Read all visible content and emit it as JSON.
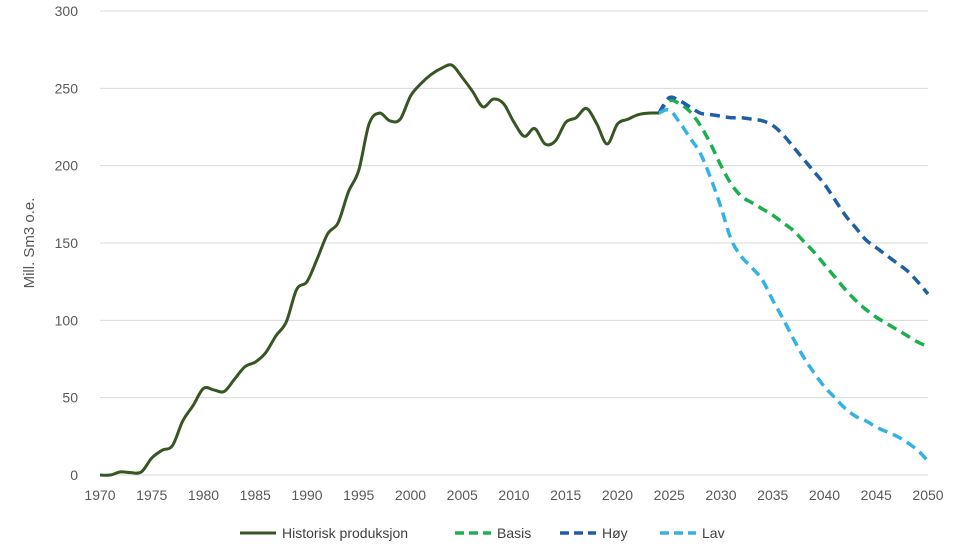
{
  "chart_data": {
    "type": "line",
    "title": "",
    "xlabel": "",
    "ylabel": "Mill. Sm3 o.e.",
    "xlim": [
      1970,
      2050
    ],
    "ylim": [
      0,
      300
    ],
    "grid": true,
    "legend_position": "bottom",
    "x_ticks": [
      "1970",
      "1975",
      "1980",
      "1985",
      "1990",
      "1995",
      "2000",
      "2005",
      "2010",
      "2015",
      "2020",
      "2025",
      "2030",
      "2035",
      "2040",
      "2045",
      "2050"
    ],
    "y_ticks": [
      "0",
      "50",
      "100",
      "150",
      "200",
      "250",
      "300"
    ],
    "series": [
      {
        "name": "Historisk produksjon",
        "color": "#375623",
        "dash": "solid",
        "x": [
          1970,
          1971,
          1972,
          1973,
          1974,
          1975,
          1976,
          1977,
          1978,
          1979,
          1980,
          1981,
          1982,
          1983,
          1984,
          1985,
          1986,
          1987,
          1988,
          1989,
          1990,
          1991,
          1992,
          1993,
          1994,
          1995,
          1996,
          1997,
          1998,
          1999,
          2000,
          2001,
          2002,
          2003,
          2004,
          2005,
          2006,
          2007,
          2008,
          2009,
          2010,
          2011,
          2012,
          2013,
          2014,
          2015,
          2016,
          2017,
          2018,
          2019,
          2020,
          2021,
          2022,
          2023,
          2024
        ],
        "values": [
          0,
          0,
          2,
          1.5,
          2,
          11,
          16,
          19,
          35,
          45,
          56,
          55,
          54,
          62,
          70,
          73,
          79,
          90,
          99,
          120,
          125,
          140,
          156,
          163,
          183,
          197,
          227,
          234,
          229,
          230,
          245,
          253,
          259,
          263,
          265,
          257,
          248,
          238,
          243,
          240,
          228,
          219,
          224,
          214,
          216,
          228,
          231,
          237,
          227,
          214,
          227,
          230,
          233,
          234,
          234
        ]
      },
      {
        "name": "Basis",
        "color": "#1ab04f",
        "dash": "dashed",
        "x": [
          2024,
          2025,
          2026,
          2027,
          2028,
          2029,
          2030,
          2031,
          2032,
          2033,
          2034,
          2035,
          2036,
          2037,
          2038,
          2039,
          2040,
          2041,
          2042,
          2043,
          2044,
          2045,
          2046,
          2047,
          2048,
          2049,
          2050
        ],
        "values": [
          234,
          242,
          240,
          235,
          226,
          214,
          200,
          188,
          180,
          176,
          172,
          168,
          163,
          158,
          151,
          144,
          136,
          128,
          120,
          113,
          107,
          102,
          98,
          94,
          90,
          86,
          83
        ]
      },
      {
        "name": "Høy",
        "color": "#1f5fa8",
        "dash": "dashed",
        "x": [
          2024,
          2025,
          2026,
          2027,
          2028,
          2029,
          2030,
          2031,
          2032,
          2033,
          2034,
          2035,
          2036,
          2037,
          2038,
          2039,
          2040,
          2041,
          2042,
          2043,
          2044,
          2045,
          2046,
          2047,
          2048,
          2049,
          2050
        ],
        "values": [
          234,
          244,
          242,
          238,
          234,
          233,
          232,
          231,
          231,
          230,
          229,
          226,
          220,
          212,
          204,
          196,
          188,
          178,
          168,
          160,
          152,
          147,
          142,
          137,
          132,
          125,
          117
        ]
      },
      {
        "name": "Lav",
        "color": "#34b1e6",
        "dash": "dashed",
        "x": [
          2024,
          2025,
          2026,
          2027,
          2028,
          2029,
          2030,
          2031,
          2032,
          2033,
          2034,
          2035,
          2036,
          2037,
          2038,
          2039,
          2040,
          2041,
          2042,
          2043,
          2044,
          2045,
          2046,
          2047,
          2048,
          2049,
          2050
        ],
        "values": [
          234,
          236,
          228,
          218,
          208,
          192,
          173,
          152,
          141,
          134,
          126,
          113,
          101,
          88,
          76,
          66,
          57,
          50,
          43,
          38,
          35,
          31,
          28,
          25,
          21,
          16,
          9
        ]
      }
    ]
  }
}
